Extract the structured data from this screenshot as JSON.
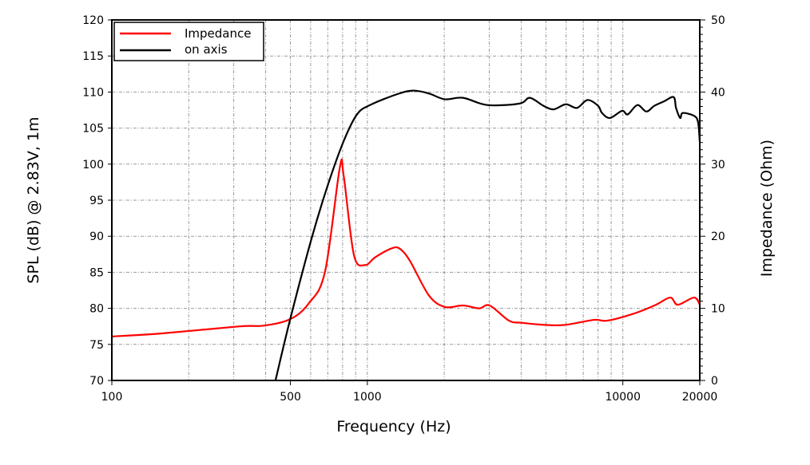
{
  "chart_data": {
    "type": "line",
    "xlabel": "Frequency (Hz)",
    "ylabel": "SPL (dB) @ 2.83V, 1m",
    "y2label": "Impedance (Ohm)",
    "x_scale": "log",
    "xlim": [
      100,
      20000
    ],
    "ylim": [
      70,
      120
    ],
    "y2lim": [
      0,
      50
    ],
    "grid": true,
    "legend_position": "top-left",
    "x_tick_labels": [
      "100",
      "500",
      "1000",
      "10000",
      "20000"
    ],
    "x_ticks": [
      100,
      500,
      1000,
      10000,
      20000
    ],
    "y_ticks": [
      70,
      75,
      80,
      85,
      90,
      95,
      100,
      105,
      110,
      115,
      120
    ],
    "y2_ticks": [
      0,
      10,
      20,
      30,
      40,
      50
    ],
    "series": [
      {
        "name": "Impedance",
        "axis": "right",
        "color": "#ff0000",
        "points": [
          [
            100,
            6.1
          ],
          [
            154,
            6.5
          ],
          [
            316,
            7.5
          ],
          [
            392,
            7.6
          ],
          [
            499,
            8.5
          ],
          [
            590,
            10.7
          ],
          [
            683,
            15.1
          ],
          [
            780,
            29.5
          ],
          [
            808,
            28.4
          ],
          [
            886,
            17.4
          ],
          [
            979,
            16.0
          ],
          [
            1075,
            17.1
          ],
          [
            1241,
            18.3
          ],
          [
            1336,
            18.3
          ],
          [
            1467,
            16.6
          ],
          [
            1741,
            11.8
          ],
          [
            2008,
            10.2
          ],
          [
            2369,
            10.4
          ],
          [
            2739,
            10.0
          ],
          [
            3013,
            10.4
          ],
          [
            3580,
            8.3
          ],
          [
            4022,
            8.0
          ],
          [
            4993,
            7.7
          ],
          [
            5937,
            7.7
          ],
          [
            7707,
            8.4
          ],
          [
            8710,
            8.3
          ],
          [
            11100,
            9.3
          ],
          [
            13480,
            10.5
          ],
          [
            15340,
            11.5
          ],
          [
            16400,
            10.5
          ],
          [
            19000,
            11.5
          ],
          [
            20000,
            10.5
          ]
        ]
      },
      {
        "name": "on axis",
        "axis": "left",
        "color": "#000000",
        "points": [
          [
            437,
            70
          ],
          [
            499,
            78.5
          ],
          [
            604,
            89.6
          ],
          [
            699,
            97.0
          ],
          [
            808,
            103.2
          ],
          [
            911,
            106.9
          ],
          [
            1025,
            108.2
          ],
          [
            1307,
            109.7
          ],
          [
            1510,
            110.2
          ],
          [
            1741,
            109.8
          ],
          [
            2008,
            109.0
          ],
          [
            2369,
            109.2
          ],
          [
            2945,
            108.2
          ],
          [
            3936,
            108.4
          ],
          [
            4325,
            109.2
          ],
          [
            4885,
            108.1
          ],
          [
            5365,
            107.6
          ],
          [
            5980,
            108.3
          ],
          [
            6616,
            107.8
          ],
          [
            7270,
            108.9
          ],
          [
            7996,
            108.1
          ],
          [
            8287,
            107.1
          ],
          [
            8903,
            106.4
          ],
          [
            9930,
            107.4
          ],
          [
            10450,
            106.9
          ],
          [
            11400,
            108.2
          ],
          [
            12360,
            107.3
          ],
          [
            13290,
            108.1
          ],
          [
            14480,
            108.7
          ],
          [
            15800,
            109.3
          ],
          [
            16150,
            107.8
          ],
          [
            16770,
            106.4
          ],
          [
            17150,
            107.1
          ],
          [
            19000,
            106.7
          ],
          [
            19700,
            105.8
          ],
          [
            20000,
            103.1
          ]
        ]
      }
    ]
  }
}
